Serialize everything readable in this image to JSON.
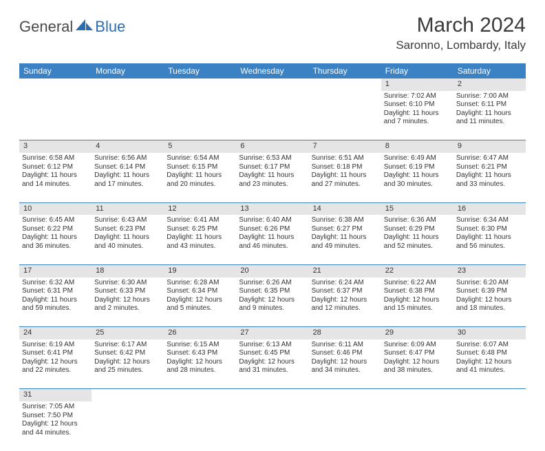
{
  "logo": {
    "text1": "General",
    "text2": "Blue"
  },
  "title": "March 2024",
  "location": "Saronno, Lombardy, Italy",
  "colors": {
    "header_bg": "#3b82c4",
    "header_text": "#ffffff",
    "daynum_bg": "#e5e5e5",
    "border": "#3b82c4",
    "logo_gray": "#575757",
    "logo_blue": "#2a6db0"
  },
  "weekdays": [
    "Sunday",
    "Monday",
    "Tuesday",
    "Wednesday",
    "Thursday",
    "Friday",
    "Saturday"
  ],
  "weeks": [
    [
      null,
      null,
      null,
      null,
      null,
      {
        "n": "1",
        "sr": "Sunrise: 7:02 AM",
        "ss": "Sunset: 6:10 PM",
        "d1": "Daylight: 11 hours",
        "d2": "and 7 minutes."
      },
      {
        "n": "2",
        "sr": "Sunrise: 7:00 AM",
        "ss": "Sunset: 6:11 PM",
        "d1": "Daylight: 11 hours",
        "d2": "and 11 minutes."
      }
    ],
    [
      {
        "n": "3",
        "sr": "Sunrise: 6:58 AM",
        "ss": "Sunset: 6:12 PM",
        "d1": "Daylight: 11 hours",
        "d2": "and 14 minutes."
      },
      {
        "n": "4",
        "sr": "Sunrise: 6:56 AM",
        "ss": "Sunset: 6:14 PM",
        "d1": "Daylight: 11 hours",
        "d2": "and 17 minutes."
      },
      {
        "n": "5",
        "sr": "Sunrise: 6:54 AM",
        "ss": "Sunset: 6:15 PM",
        "d1": "Daylight: 11 hours",
        "d2": "and 20 minutes."
      },
      {
        "n": "6",
        "sr": "Sunrise: 6:53 AM",
        "ss": "Sunset: 6:17 PM",
        "d1": "Daylight: 11 hours",
        "d2": "and 23 minutes."
      },
      {
        "n": "7",
        "sr": "Sunrise: 6:51 AM",
        "ss": "Sunset: 6:18 PM",
        "d1": "Daylight: 11 hours",
        "d2": "and 27 minutes."
      },
      {
        "n": "8",
        "sr": "Sunrise: 6:49 AM",
        "ss": "Sunset: 6:19 PM",
        "d1": "Daylight: 11 hours",
        "d2": "and 30 minutes."
      },
      {
        "n": "9",
        "sr": "Sunrise: 6:47 AM",
        "ss": "Sunset: 6:21 PM",
        "d1": "Daylight: 11 hours",
        "d2": "and 33 minutes."
      }
    ],
    [
      {
        "n": "10",
        "sr": "Sunrise: 6:45 AM",
        "ss": "Sunset: 6:22 PM",
        "d1": "Daylight: 11 hours",
        "d2": "and 36 minutes."
      },
      {
        "n": "11",
        "sr": "Sunrise: 6:43 AM",
        "ss": "Sunset: 6:23 PM",
        "d1": "Daylight: 11 hours",
        "d2": "and 40 minutes."
      },
      {
        "n": "12",
        "sr": "Sunrise: 6:41 AM",
        "ss": "Sunset: 6:25 PM",
        "d1": "Daylight: 11 hours",
        "d2": "and 43 minutes."
      },
      {
        "n": "13",
        "sr": "Sunrise: 6:40 AM",
        "ss": "Sunset: 6:26 PM",
        "d1": "Daylight: 11 hours",
        "d2": "and 46 minutes."
      },
      {
        "n": "14",
        "sr": "Sunrise: 6:38 AM",
        "ss": "Sunset: 6:27 PM",
        "d1": "Daylight: 11 hours",
        "d2": "and 49 minutes."
      },
      {
        "n": "15",
        "sr": "Sunrise: 6:36 AM",
        "ss": "Sunset: 6:29 PM",
        "d1": "Daylight: 11 hours",
        "d2": "and 52 minutes."
      },
      {
        "n": "16",
        "sr": "Sunrise: 6:34 AM",
        "ss": "Sunset: 6:30 PM",
        "d1": "Daylight: 11 hours",
        "d2": "and 56 minutes."
      }
    ],
    [
      {
        "n": "17",
        "sr": "Sunrise: 6:32 AM",
        "ss": "Sunset: 6:31 PM",
        "d1": "Daylight: 11 hours",
        "d2": "and 59 minutes."
      },
      {
        "n": "18",
        "sr": "Sunrise: 6:30 AM",
        "ss": "Sunset: 6:33 PM",
        "d1": "Daylight: 12 hours",
        "d2": "and 2 minutes."
      },
      {
        "n": "19",
        "sr": "Sunrise: 6:28 AM",
        "ss": "Sunset: 6:34 PM",
        "d1": "Daylight: 12 hours",
        "d2": "and 5 minutes."
      },
      {
        "n": "20",
        "sr": "Sunrise: 6:26 AM",
        "ss": "Sunset: 6:35 PM",
        "d1": "Daylight: 12 hours",
        "d2": "and 9 minutes."
      },
      {
        "n": "21",
        "sr": "Sunrise: 6:24 AM",
        "ss": "Sunset: 6:37 PM",
        "d1": "Daylight: 12 hours",
        "d2": "and 12 minutes."
      },
      {
        "n": "22",
        "sr": "Sunrise: 6:22 AM",
        "ss": "Sunset: 6:38 PM",
        "d1": "Daylight: 12 hours",
        "d2": "and 15 minutes."
      },
      {
        "n": "23",
        "sr": "Sunrise: 6:20 AM",
        "ss": "Sunset: 6:39 PM",
        "d1": "Daylight: 12 hours",
        "d2": "and 18 minutes."
      }
    ],
    [
      {
        "n": "24",
        "sr": "Sunrise: 6:19 AM",
        "ss": "Sunset: 6:41 PM",
        "d1": "Daylight: 12 hours",
        "d2": "and 22 minutes."
      },
      {
        "n": "25",
        "sr": "Sunrise: 6:17 AM",
        "ss": "Sunset: 6:42 PM",
        "d1": "Daylight: 12 hours",
        "d2": "and 25 minutes."
      },
      {
        "n": "26",
        "sr": "Sunrise: 6:15 AM",
        "ss": "Sunset: 6:43 PM",
        "d1": "Daylight: 12 hours",
        "d2": "and 28 minutes."
      },
      {
        "n": "27",
        "sr": "Sunrise: 6:13 AM",
        "ss": "Sunset: 6:45 PM",
        "d1": "Daylight: 12 hours",
        "d2": "and 31 minutes."
      },
      {
        "n": "28",
        "sr": "Sunrise: 6:11 AM",
        "ss": "Sunset: 6:46 PM",
        "d1": "Daylight: 12 hours",
        "d2": "and 34 minutes."
      },
      {
        "n": "29",
        "sr": "Sunrise: 6:09 AM",
        "ss": "Sunset: 6:47 PM",
        "d1": "Daylight: 12 hours",
        "d2": "and 38 minutes."
      },
      {
        "n": "30",
        "sr": "Sunrise: 6:07 AM",
        "ss": "Sunset: 6:48 PM",
        "d1": "Daylight: 12 hours",
        "d2": "and 41 minutes."
      }
    ],
    [
      {
        "n": "31",
        "sr": "Sunrise: 7:05 AM",
        "ss": "Sunset: 7:50 PM",
        "d1": "Daylight: 12 hours",
        "d2": "and 44 minutes."
      },
      null,
      null,
      null,
      null,
      null,
      null
    ]
  ]
}
